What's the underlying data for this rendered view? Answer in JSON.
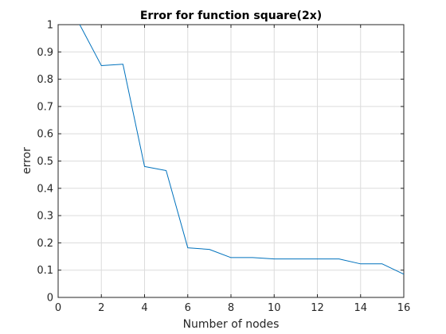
{
  "chart_data": {
    "type": "line",
    "title": "Error for function square(2x)",
    "xlabel": "Number of nodes",
    "ylabel": "error",
    "xlim": [
      0,
      16
    ],
    "ylim": [
      0,
      1
    ],
    "xticks": [
      0,
      2,
      4,
      6,
      8,
      10,
      12,
      14,
      16
    ],
    "yticks": [
      0,
      0.1,
      0.2,
      0.3,
      0.4,
      0.5,
      0.6,
      0.7,
      0.8,
      0.9,
      1
    ],
    "xtick_labels": [
      "0",
      "2",
      "4",
      "6",
      "8",
      "10",
      "12",
      "14",
      "16"
    ],
    "ytick_labels": [
      "0",
      "0.1",
      "0.2",
      "0.3",
      "0.4",
      "0.5",
      "0.6",
      "0.7",
      "0.8",
      "0.9",
      "1"
    ],
    "grid": true,
    "series": [
      {
        "color": "#0072bd",
        "x": [
          1,
          2,
          3,
          4,
          5,
          6,
          7,
          8,
          9,
          10,
          11,
          12,
          13,
          14,
          15,
          16
        ],
        "y": [
          1.0,
          0.85,
          0.855,
          0.48,
          0.465,
          0.182,
          0.176,
          0.146,
          0.146,
          0.141,
          0.141,
          0.141,
          0.141,
          0.123,
          0.123,
          0.085
        ]
      }
    ]
  }
}
